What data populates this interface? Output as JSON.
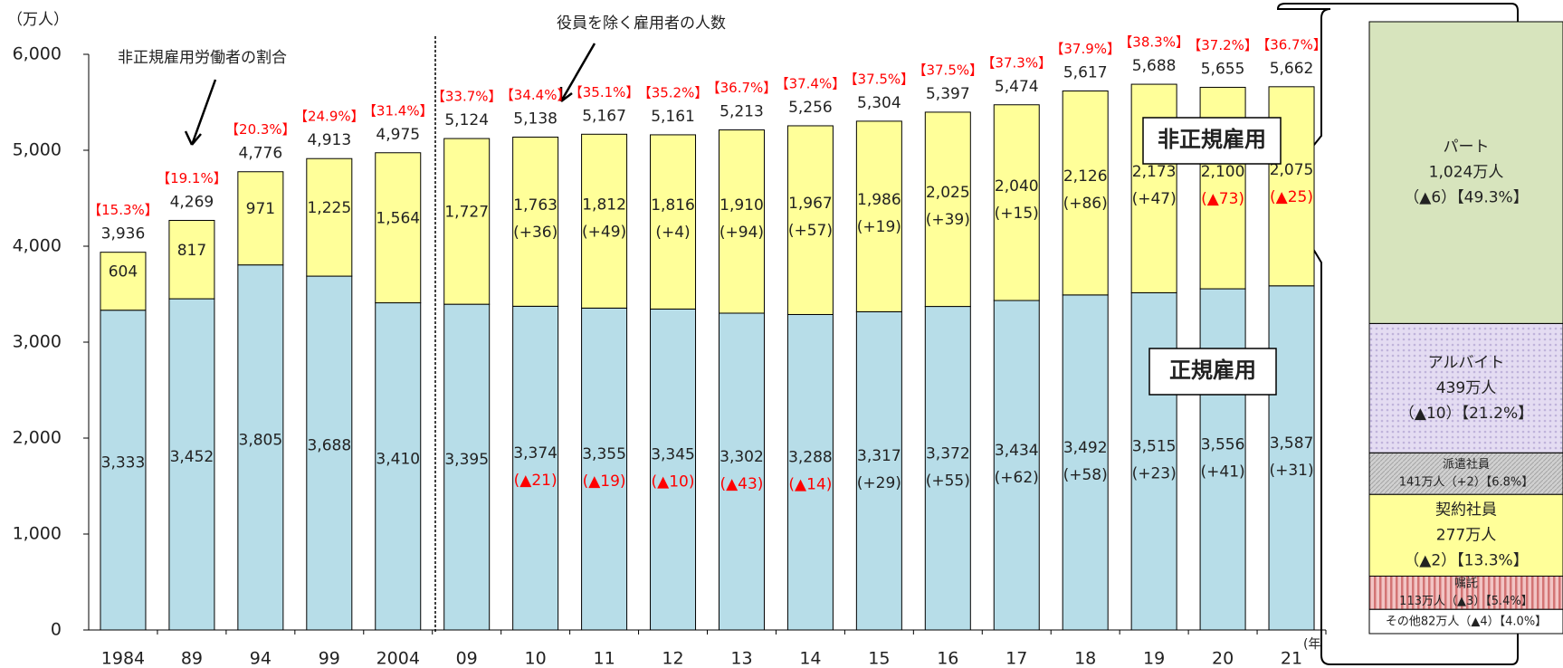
{
  "chart_data": {
    "type": "stacked-bar",
    "y_axis_label": "（万人）",
    "x_axis_label": "(年)",
    "categories": [
      "1984",
      "89",
      "94",
      "99",
      "2004",
      "09",
      "10",
      "11",
      "12",
      "13",
      "14",
      "15",
      "16",
      "17",
      "18",
      "19",
      "20",
      "21"
    ],
    "series": [
      {
        "name": "正規雇用",
        "color": "#b7dde8",
        "values": [
          3333,
          3452,
          3805,
          3688,
          3410,
          3395,
          3374,
          3355,
          3345,
          3302,
          3288,
          3317,
          3372,
          3434,
          3492,
          3515,
          3556,
          3587
        ],
        "value_labels": [
          "3,333",
          "3,452",
          "3,805",
          "3,688",
          "3,410",
          "3,395",
          "3,374",
          "3,355",
          "3,345",
          "3,302",
          "3,288",
          "3,317",
          "3,372",
          "3,434",
          "3,492",
          "3,515",
          "3,556",
          "3,587"
        ],
        "change_labels": [
          null,
          null,
          null,
          null,
          null,
          null,
          "(▲21)",
          "(▲19)",
          "(▲10)",
          "(▲43)",
          "(▲14)",
          "(+29)",
          "(+55)",
          "(+62)",
          "(+58)",
          "(+23)",
          "(+41)",
          "(+31)"
        ]
      },
      {
        "name": "非正規雇用",
        "color": "#ffff99",
        "values": [
          604,
          817,
          971,
          1225,
          1564,
          1727,
          1763,
          1812,
          1816,
          1910,
          1967,
          1986,
          2025,
          2040,
          2126,
          2173,
          2100,
          2075
        ],
        "value_labels": [
          "604",
          "817",
          "971",
          "1,225",
          "1,564",
          "1,727",
          "1,763",
          "1,812",
          "1,816",
          "1,910",
          "1,967",
          "1,986",
          "2,025",
          "2,040",
          "2,126",
          "2,173",
          "2,100",
          "2,075"
        ],
        "change_labels": [
          null,
          null,
          null,
          null,
          null,
          null,
          "(+36)",
          "(+49)",
          "(+4)",
          "(+94)",
          "(+57)",
          "(+19)",
          "(+39)",
          "(+15)",
          "(+86)",
          "(+47)",
          "(▲73)",
          "(▲25)"
        ]
      }
    ],
    "totals": [
      3936,
      4269,
      4776,
      4913,
      4975,
      5124,
      5138,
      5167,
      5161,
      5213,
      5256,
      5304,
      5397,
      5474,
      5617,
      5688,
      5655,
      5662
    ],
    "total_labels": [
      "3,936",
      "4,269",
      "4,776",
      "4,913",
      "4,975",
      "5,124",
      "5,138",
      "5,167",
      "5,161",
      "5,213",
      "5,256",
      "5,304",
      "5,397",
      "5,474",
      "5,617",
      "5,688",
      "5,655",
      "5,662"
    ],
    "ratio_labels": [
      "【15.3%】",
      "【19.1%】",
      "【20.3%】",
      "【24.9%】",
      "【31.4%】",
      "【33.7%】",
      "【34.4%】",
      "【35.1%】",
      "【35.2%】",
      "【36.7%】",
      "【37.4%】",
      "【37.5%】",
      "【37.5%】",
      "【37.3%】",
      "【37.9%】",
      "【38.3%】",
      "【37.2%】",
      "【36.7%】"
    ],
    "annotations": [
      "非正規雇用労働者の割合",
      "役員を除く雇用者の人数"
    ],
    "ylim": [
      0,
      6000
    ],
    "yticks": [
      0,
      {
        "value": 1000,
        "label": "1,000"
      },
      {
        "value": 2000,
        "label": "2,000"
      },
      {
        "value": 3000,
        "label": "3,000"
      },
      {
        "value": 4000,
        "label": "4,000"
      },
      {
        "value": 5000,
        "label": "5,000"
      },
      {
        "value": 6000,
        "label": "6,000"
      }
    ]
  },
  "breakdown": {
    "items": [
      {
        "name": "パート",
        "value": 1024,
        "value_label": "1,024万人",
        "change": "（▲6）",
        "share": "【49.3%】",
        "color": "#d7e4bd"
      },
      {
        "name": "アルバイト",
        "value": 439,
        "value_label": "439万人",
        "change": "（▲10）",
        "share": "【21.2%】",
        "color": "#e4dcf2"
      },
      {
        "name": "派遣社員",
        "value": 141,
        "value_label": "141万人",
        "change": "（+2）",
        "share": "【6.8%】",
        "color": "#d0d0d0"
      },
      {
        "name": "契約社員",
        "value": 277,
        "value_label": "277万人",
        "change": "（▲2）",
        "share": "【13.3%】",
        "color": "#ffff99"
      },
      {
        "name": "嘱託",
        "value": 113,
        "value_label": "113万人",
        "change": "（▲3）",
        "share": "【5.4%】",
        "color": "#f2c4c4"
      },
      {
        "name": "その他",
        "value": 82,
        "value_label": "82万人",
        "change": "（▲4）",
        "share": "【4.0%】",
        "color": "#ffffff"
      }
    ]
  }
}
